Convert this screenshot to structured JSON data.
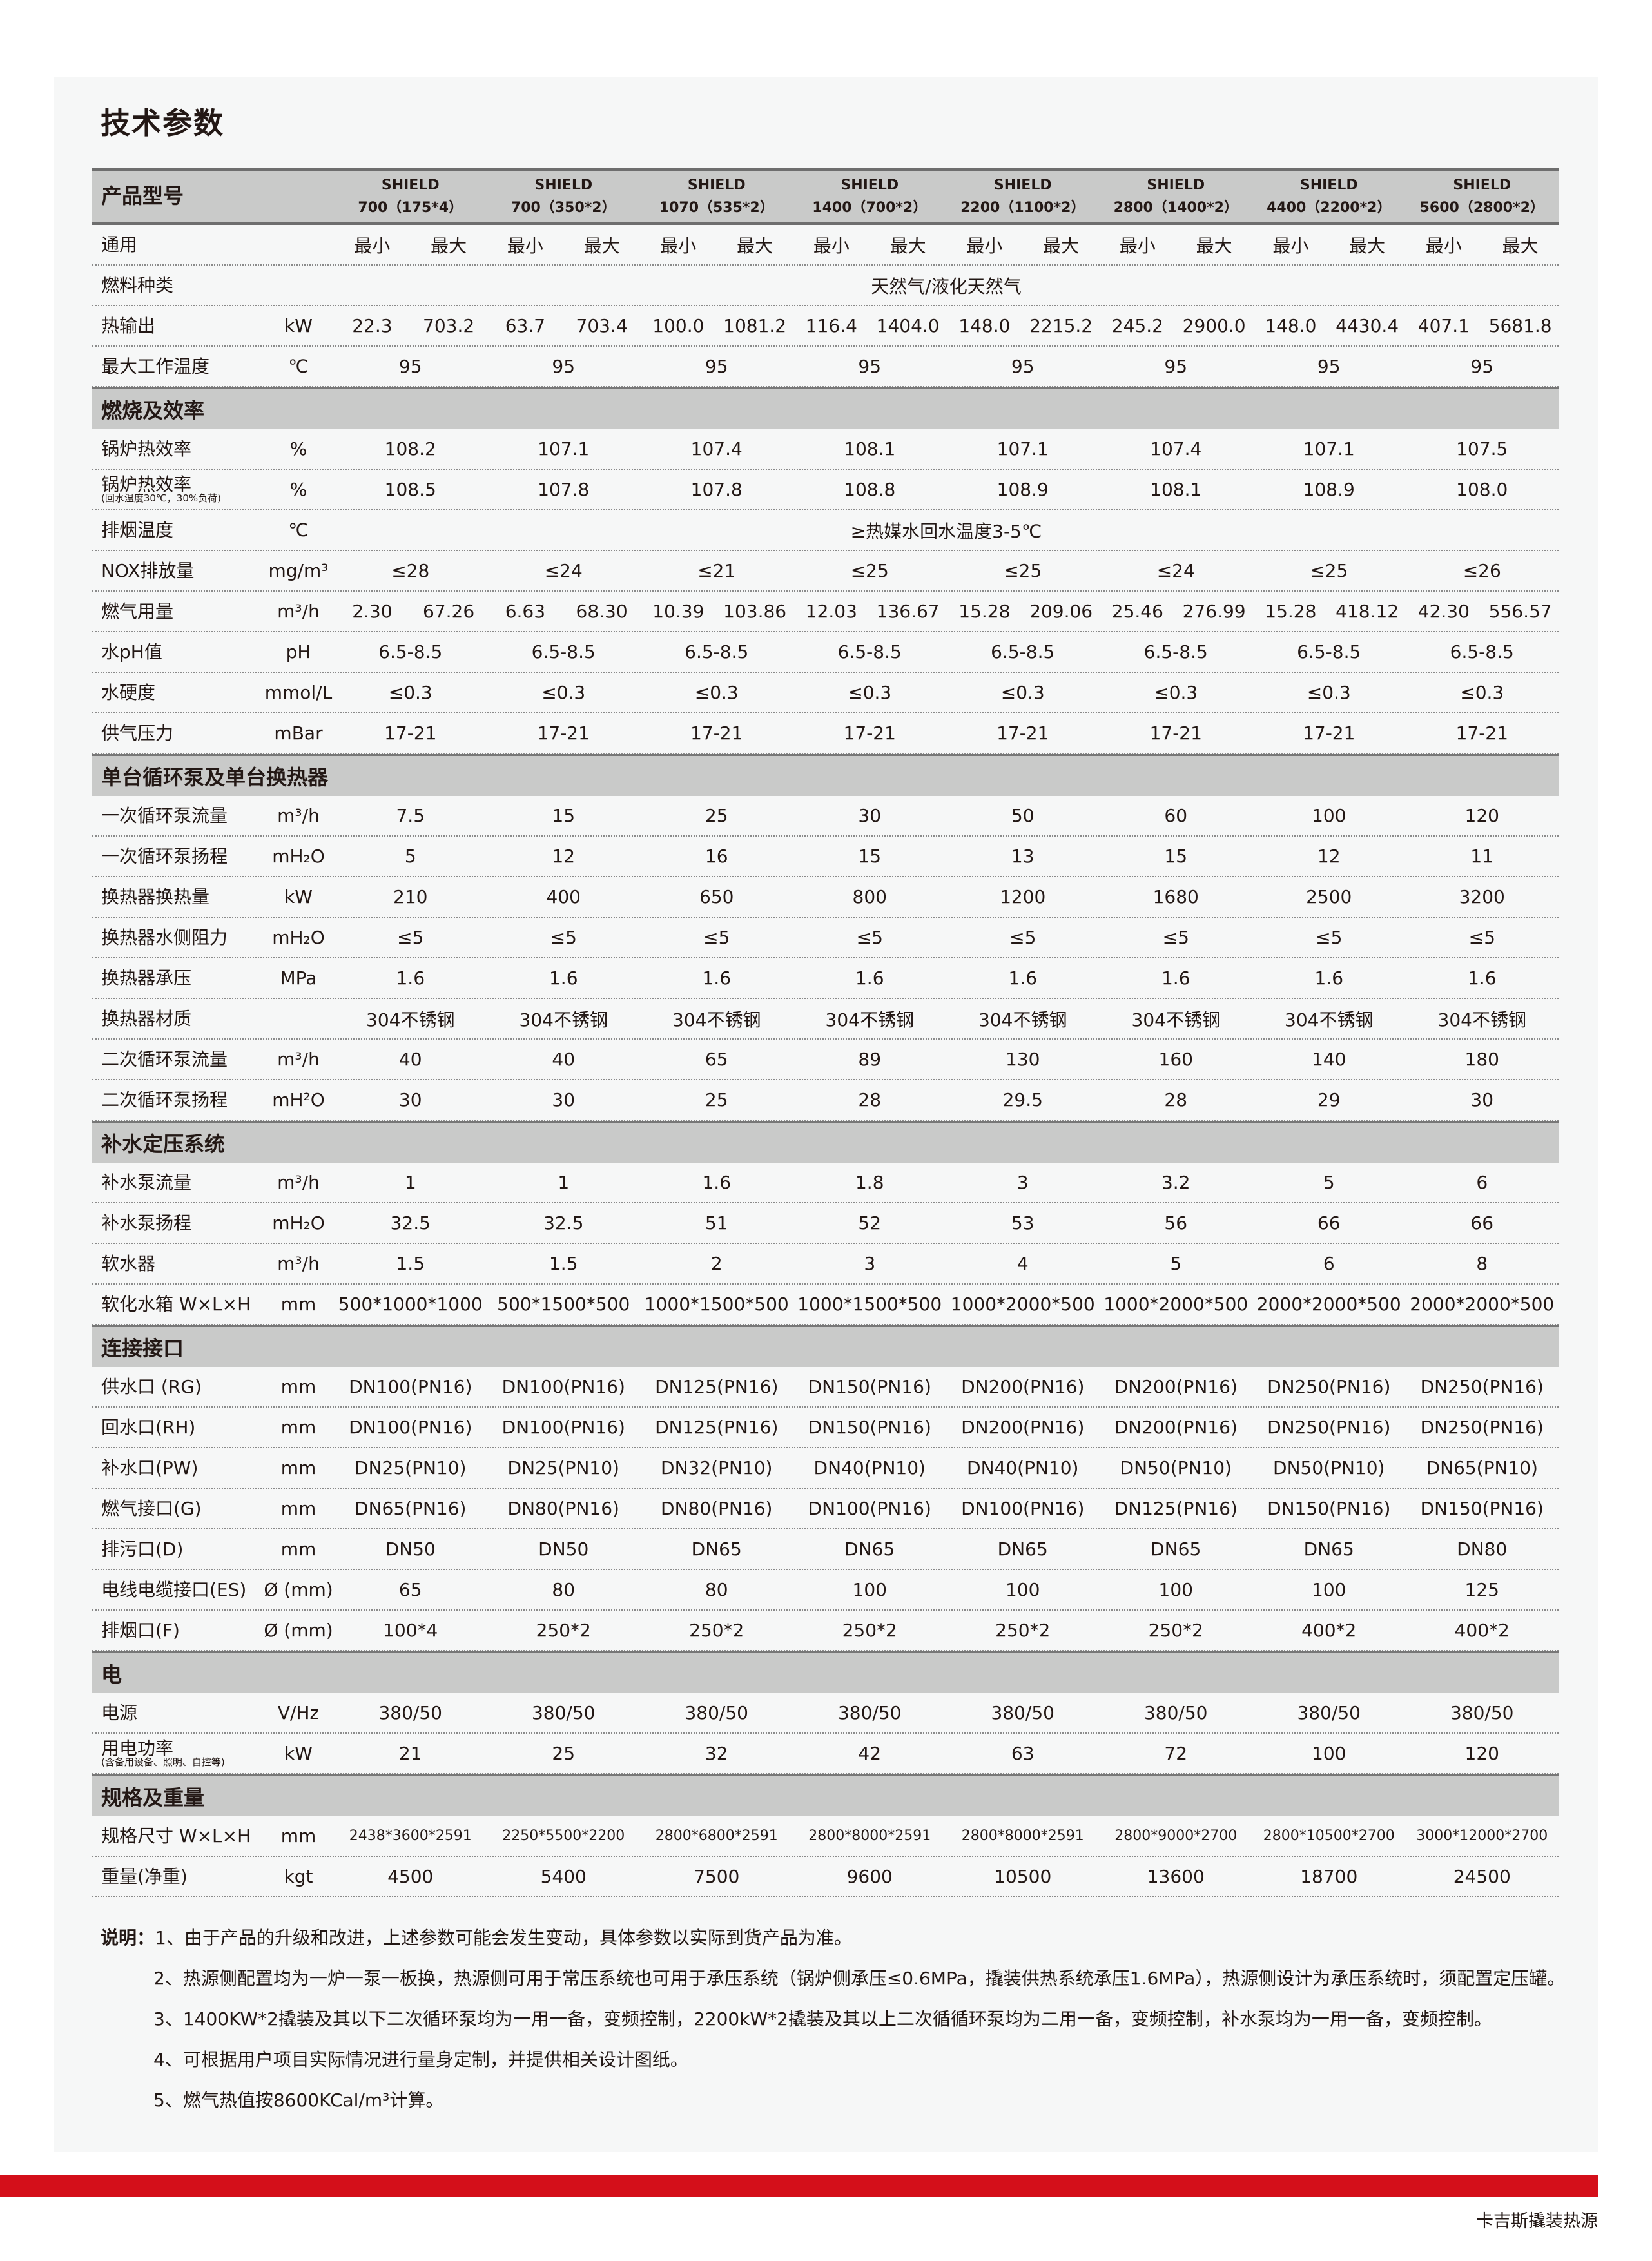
{
  "title": "技术参数",
  "header": {
    "label": "产品型号",
    "models": [
      [
        "SHIELD",
        "700（175*4）"
      ],
      [
        "SHIELD",
        "700（350*2）"
      ],
      [
        "SHIELD",
        "1070（535*2）"
      ],
      [
        "SHIELD",
        "1400（700*2）"
      ],
      [
        "SHIELD",
        "2200（1100*2）"
      ],
      [
        "SHIELD",
        "2800（1400*2）"
      ],
      [
        "SHIELD",
        "4400（2200*2）"
      ],
      [
        "SHIELD",
        "5600（2800*2）"
      ]
    ]
  },
  "blocks": [
    {
      "rows": [
        {
          "label": "通用",
          "unit": "",
          "pairs": [
            [
              "最小",
              "最大"
            ],
            [
              "最小",
              "最大"
            ],
            [
              "最小",
              "最大"
            ],
            [
              "最小",
              "最大"
            ],
            [
              "最小",
              "最大"
            ],
            [
              "最小",
              "最大"
            ],
            [
              "最小",
              "最大"
            ],
            [
              "最小",
              "最大"
            ]
          ]
        },
        {
          "label": "燃料种类",
          "unit": "",
          "span": "天然气/液化天然气"
        },
        {
          "label": "热输出",
          "unit": "kW",
          "pairs": [
            [
              "22.3",
              "703.2"
            ],
            [
              "63.7",
              "703.4"
            ],
            [
              "100.0",
              "1081.2"
            ],
            [
              "116.4",
              "1404.0"
            ],
            [
              "148.0",
              "2215.2"
            ],
            [
              "245.2",
              "2900.0"
            ],
            [
              "148.0",
              "4430.4"
            ],
            [
              "407.1",
              "5681.8"
            ]
          ]
        },
        {
          "label": "最大工作温度",
          "unit": "℃",
          "values": [
            "95",
            "95",
            "95",
            "95",
            "95",
            "95",
            "95",
            "95"
          ]
        }
      ]
    },
    {
      "section": "燃烧及效率",
      "rows": [
        {
          "label": "锅炉热效率",
          "unit": "%",
          "values": [
            "108.2",
            "107.1",
            "107.4",
            "108.1",
            "107.1",
            "107.4",
            "107.1",
            "107.5"
          ]
        },
        {
          "label": "锅炉热效率",
          "sub": "(回水温度30℃，30%负荷)",
          "unit": "%",
          "values": [
            "108.5",
            "107.8",
            "107.8",
            "108.8",
            "108.9",
            "108.1",
            "108.9",
            "108.0"
          ]
        },
        {
          "label": "排烟温度",
          "unit": "℃",
          "span": "≥热媒水回水温度3-5℃"
        },
        {
          "label": "NOX排放量",
          "unit": "mg/m³",
          "values": [
            "≤28",
            "≤24",
            "≤21",
            "≤25",
            "≤25",
            "≤24",
            "≤25",
            "≤26"
          ]
        },
        {
          "label": "燃气用量",
          "unit": "m³/h",
          "pairs": [
            [
              "2.30",
              "67.26"
            ],
            [
              "6.63",
              "68.30"
            ],
            [
              "10.39",
              "103.86"
            ],
            [
              "12.03",
              "136.67"
            ],
            [
              "15.28",
              "209.06"
            ],
            [
              "25.46",
              "276.99"
            ],
            [
              "15.28",
              "418.12"
            ],
            [
              "42.30",
              "556.57"
            ]
          ]
        },
        {
          "label": "水pH值",
          "unit": "pH",
          "values": [
            "6.5-8.5",
            "6.5-8.5",
            "6.5-8.5",
            "6.5-8.5",
            "6.5-8.5",
            "6.5-8.5",
            "6.5-8.5",
            "6.5-8.5"
          ]
        },
        {
          "label": "水硬度",
          "unit": "mmol/L",
          "values": [
            "≤0.3",
            "≤0.3",
            "≤0.3",
            "≤0.3",
            "≤0.3",
            "≤0.3",
            "≤0.3",
            "≤0.3"
          ]
        },
        {
          "label": "供气压力",
          "unit": "mBar",
          "values": [
            "17-21",
            "17-21",
            "17-21",
            "17-21",
            "17-21",
            "17-21",
            "17-21",
            "17-21"
          ]
        }
      ]
    },
    {
      "section": "单台循环泵及单台换热器",
      "rows": [
        {
          "label": "一次循环泵流量",
          "unit": "m³/h",
          "values": [
            "7.5",
            "15",
            "25",
            "30",
            "50",
            "60",
            "100",
            "120"
          ]
        },
        {
          "label": "一次循环泵扬程",
          "unit": "mH₂O",
          "values": [
            "5",
            "12",
            "16",
            "15",
            "13",
            "15",
            "12",
            "11"
          ]
        },
        {
          "label": "换热器换热量",
          "unit": "kW",
          "values": [
            "210",
            "400",
            "650",
            "800",
            "1200",
            "1680",
            "2500",
            "3200"
          ]
        },
        {
          "label": "换热器水侧阻力",
          "unit": "mH₂O",
          "values": [
            "≤5",
            "≤5",
            "≤5",
            "≤5",
            "≤5",
            "≤5",
            "≤5",
            "≤5"
          ]
        },
        {
          "label": "换热器承压",
          "unit": "MPa",
          "values": [
            "1.6",
            "1.6",
            "1.6",
            "1.6",
            "1.6",
            "1.6",
            "1.6",
            "1.6"
          ]
        },
        {
          "label": "换热器材质",
          "unit": "",
          "values": [
            "304不锈钢",
            "304不锈钢",
            "304不锈钢",
            "304不锈钢",
            "304不锈钢",
            "304不锈钢",
            "304不锈钢",
            "304不锈钢"
          ]
        },
        {
          "label": "二次循环泵流量",
          "unit": "m³/h",
          "values": [
            "40",
            "40",
            "65",
            "89",
            "130",
            "160",
            "140",
            "180"
          ]
        },
        {
          "label": "二次循环泵扬程",
          "unit": "mH²O",
          "values": [
            "30",
            "30",
            "25",
            "28",
            "29.5",
            "28",
            "29",
            "30"
          ]
        }
      ]
    },
    {
      "section": "补水定压系统",
      "rows": [
        {
          "label": "补水泵流量",
          "unit": "m³/h",
          "values": [
            "1",
            "1",
            "1.6",
            "1.8",
            "3",
            "3.2",
            "5",
            "6"
          ]
        },
        {
          "label": "补水泵扬程",
          "unit": "mH₂O",
          "values": [
            "32.5",
            "32.5",
            "51",
            "52",
            "53",
            "56",
            "66",
            "66"
          ]
        },
        {
          "label": "软水器",
          "unit": "m³/h",
          "values": [
            "1.5",
            "1.5",
            "2",
            "3",
            "4",
            "5",
            "6",
            "8"
          ]
        },
        {
          "label": "软化水箱 W×L×H",
          "unit": "mm",
          "values": [
            "500*1000*1000",
            "500*1500*500",
            "1000*1500*500",
            "1000*1500*500",
            "1000*2000*500",
            "1000*2000*500",
            "2000*2000*500",
            "2000*2000*500"
          ]
        }
      ]
    },
    {
      "section": "连接接口",
      "rows": [
        {
          "label": "供水口 (RG)",
          "unit": "mm",
          "values": [
            "DN100(PN16)",
            "DN100(PN16)",
            "DN125(PN16)",
            "DN150(PN16)",
            "DN200(PN16)",
            "DN200(PN16)",
            "DN250(PN16)",
            "DN250(PN16)"
          ]
        },
        {
          "label": "回水口(RH)",
          "unit": "mm",
          "values": [
            "DN100(PN16)",
            "DN100(PN16)",
            "DN125(PN16)",
            "DN150(PN16)",
            "DN200(PN16)",
            "DN200(PN16)",
            "DN250(PN16)",
            "DN250(PN16)"
          ]
        },
        {
          "label": "补水口(PW)",
          "unit": "mm",
          "values": [
            "DN25(PN10)",
            "DN25(PN10)",
            "DN32(PN10)",
            "DN40(PN10)",
            "DN40(PN10)",
            "DN50(PN10)",
            "DN50(PN10)",
            "DN65(PN10)"
          ]
        },
        {
          "label": "燃气接口(G)",
          "unit": "mm",
          "values": [
            "DN65(PN16)",
            "DN80(PN16)",
            "DN80(PN16)",
            "DN100(PN16)",
            "DN100(PN16)",
            "DN125(PN16)",
            "DN150(PN16)",
            "DN150(PN16)"
          ]
        },
        {
          "label": "排污口(D)",
          "unit": "mm",
          "values": [
            "DN50",
            "DN50",
            "DN65",
            "DN65",
            "DN65",
            "DN65",
            "DN65",
            "DN80"
          ]
        },
        {
          "label": "电线电缆接口(ES)",
          "unit": "Ø (mm)",
          "values": [
            "65",
            "80",
            "80",
            "100",
            "100",
            "100",
            "100",
            "125"
          ]
        },
        {
          "label": "排烟口(F)",
          "unit": "Ø (mm)",
          "values": [
            "100*4",
            "250*2",
            "250*2",
            "250*2",
            "250*2",
            "250*2",
            "400*2",
            "400*2"
          ]
        }
      ]
    },
    {
      "section": "电",
      "rows": [
        {
          "label": "电源",
          "unit": "V/Hz",
          "values": [
            "380/50",
            "380/50",
            "380/50",
            "380/50",
            "380/50",
            "380/50",
            "380/50",
            "380/50"
          ]
        },
        {
          "label": "用电功率",
          "sub": "(含备用设备、照明、自控等)",
          "unit": "kW",
          "values": [
            "21",
            "25",
            "32",
            "42",
            "63",
            "72",
            "100",
            "120"
          ]
        }
      ]
    },
    {
      "section": "规格及重量",
      "rows": [
        {
          "label": "规格尺寸 W×L×H",
          "unit": "mm",
          "small": true,
          "values": [
            "2438*3600*2591",
            "2250*5500*2200",
            "2800*6800*2591",
            "2800*8000*2591",
            "2800*8000*2591",
            "2800*9000*2700",
            "2800*10500*2700",
            "3000*12000*2700"
          ]
        },
        {
          "label": "重量(净重)",
          "unit": "kgt",
          "values": [
            "4500",
            "5400",
            "7500",
            "9600",
            "10500",
            "13600",
            "18700",
            "24500"
          ]
        }
      ]
    }
  ],
  "notes": {
    "prefix": "说明：",
    "items": [
      "1、由于产品的升级和改进，上述参数可能会发生变动，具体参数以实际到货产品为准。",
      "2、热源侧配置均为一炉一泵一板换，热源侧可用于常压系统也可用于承压系统（锅炉侧承压≤0.6MPa，撬装供热系统承压1.6MPa），热源侧设计为承压系统时，须配置定压罐。",
      "3、1400KW*2撬装及其以下二次循环泵均为一用一备，变频控制，2200kW*2撬装及其以上二次循循环泵均为二用一备，变频控制，补水泵均为一用一备，变频控制。",
      "4、可根据用户项目实际情况进行量身定制，并提供相关设计图纸。",
      "5、燃气热值按8600KCal/m³计算。"
    ]
  },
  "footer": "卡吉斯撬装热源",
  "colors": {
    "accent_bar": "#d40f1a",
    "section_bg": "#c9cac9",
    "panel_bg": "#f6f7f7"
  }
}
